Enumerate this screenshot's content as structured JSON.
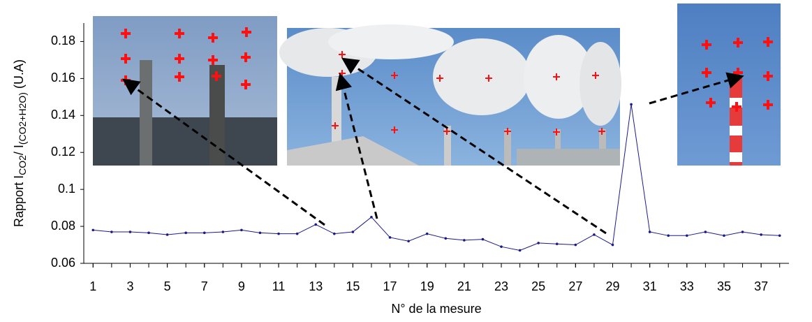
{
  "chart_data": {
    "type": "line",
    "y_label": [
      "Rapport I",
      "CO2",
      "/ I",
      "(CO2+H2O)",
      " (U.A)"
    ],
    "x_label": "N° de la mesure",
    "x": [
      1,
      2,
      3,
      4,
      5,
      6,
      7,
      8,
      9,
      10,
      11,
      12,
      13,
      14,
      15,
      16,
      17,
      18,
      19,
      20,
      21,
      22,
      23,
      24,
      25,
      26,
      27,
      28,
      29,
      30,
      31,
      32,
      33,
      34,
      35,
      36,
      37,
      38
    ],
    "series": [
      {
        "color": "#1a1a8c",
        "values": [
          0.078,
          0.077,
          0.077,
          0.0765,
          0.0755,
          0.0765,
          0.0765,
          0.077,
          0.078,
          0.0765,
          0.076,
          0.076,
          0.081,
          0.076,
          0.077,
          0.085,
          0.074,
          0.072,
          0.076,
          0.0735,
          0.0725,
          0.073,
          0.069,
          0.067,
          0.071,
          0.0705,
          0.07,
          0.0755,
          0.07,
          0.146,
          0.077,
          0.075,
          0.075,
          0.077,
          0.075,
          0.077,
          0.0755,
          0.075
        ]
      }
    ],
    "xlim": [
      0.5,
      38.5
    ],
    "xticks": [
      1,
      3,
      5,
      7,
      9,
      11,
      13,
      15,
      17,
      19,
      21,
      23,
      25,
      27,
      29,
      31,
      33,
      35,
      37
    ],
    "ylim": [
      0.06,
      0.19
    ],
    "yticks": [
      0.06,
      0.08,
      {
        "value": 0.1,
        "label": "0.1"
      },
      0.12,
      0.14,
      0.16,
      0.18
    ],
    "grid": false
  }
}
